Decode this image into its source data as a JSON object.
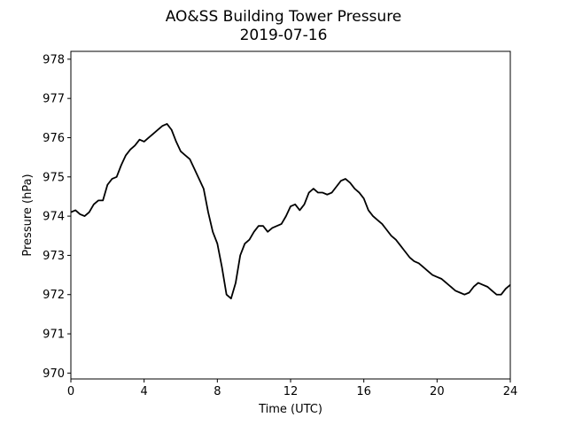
{
  "chart_data": {
    "type": "line",
    "title": "AO&SS Building Tower Pressure",
    "subtitle": "2019-07-16",
    "xlabel": "Time (UTC)",
    "ylabel": "Pressure (hPa)",
    "xlim": [
      0,
      24
    ],
    "ylim": [
      969.85,
      978.2
    ],
    "xticks": [
      0,
      4,
      8,
      12,
      16,
      20,
      24
    ],
    "yticks": [
      970,
      971,
      972,
      973,
      974,
      975,
      976,
      977,
      978
    ],
    "grid": false,
    "line_color": "#000000",
    "series": [
      {
        "x": [
          0,
          0.25,
          0.5,
          0.75,
          1.0,
          1.25,
          1.5,
          1.75,
          2.0,
          2.25,
          2.5,
          2.75,
          3.0,
          3.25,
          3.5,
          3.75,
          4.0,
          4.25,
          4.5,
          4.75,
          5.0,
          5.25,
          5.5,
          5.75,
          6.0,
          6.25,
          6.5,
          6.75,
          7.0,
          7.25,
          7.5,
          7.75,
          8.0,
          8.25,
          8.5,
          8.75,
          9.0,
          9.25,
          9.5,
          9.75,
          10.0,
          10.25,
          10.5,
          10.75,
          11.0,
          11.25,
          11.5,
          11.75,
          12.0,
          12.25,
          12.5,
          12.75,
          13.0,
          13.25,
          13.5,
          13.75,
          14.0,
          14.25,
          14.5,
          14.75,
          15.0,
          15.25,
          15.5,
          15.75,
          16.0,
          16.25,
          16.5,
          16.75,
          17.0,
          17.25,
          17.5,
          17.75,
          18.0,
          18.25,
          18.5,
          18.75,
          19.0,
          19.25,
          19.5,
          19.75,
          20.0,
          20.25,
          20.5,
          20.75,
          21.0,
          21.25,
          21.5,
          21.75,
          22.0,
          22.25,
          22.5,
          22.75,
          23.0,
          23.25,
          23.5,
          23.75,
          24.0
        ],
        "y": [
          974.1,
          974.15,
          974.05,
          974.0,
          974.1,
          974.3,
          974.4,
          974.4,
          974.8,
          974.95,
          975.0,
          975.3,
          975.55,
          975.7,
          975.8,
          975.95,
          975.9,
          976.0,
          976.1,
          976.2,
          976.3,
          976.35,
          976.2,
          975.9,
          975.65,
          975.55,
          975.45,
          975.2,
          974.95,
          974.7,
          974.1,
          973.6,
          973.3,
          972.7,
          972.0,
          971.9,
          972.3,
          973.0,
          973.3,
          973.4,
          973.6,
          973.75,
          973.75,
          973.6,
          973.7,
          973.75,
          973.8,
          974.0,
          974.25,
          974.3,
          974.15,
          974.3,
          974.6,
          974.7,
          974.6,
          974.6,
          974.55,
          974.6,
          974.75,
          974.9,
          974.95,
          974.85,
          974.7,
          974.6,
          974.45,
          974.15,
          974.0,
          973.9,
          973.8,
          973.65,
          973.5,
          973.4,
          973.25,
          973.1,
          972.95,
          972.85,
          972.8,
          972.7,
          972.6,
          972.5,
          972.45,
          972.4,
          972.3,
          972.2,
          972.1,
          972.05,
          972.0,
          972.05,
          972.2,
          972.3,
          972.25,
          972.2,
          972.1,
          972.0,
          972.0,
          972.15,
          972.25
        ]
      }
    ]
  }
}
